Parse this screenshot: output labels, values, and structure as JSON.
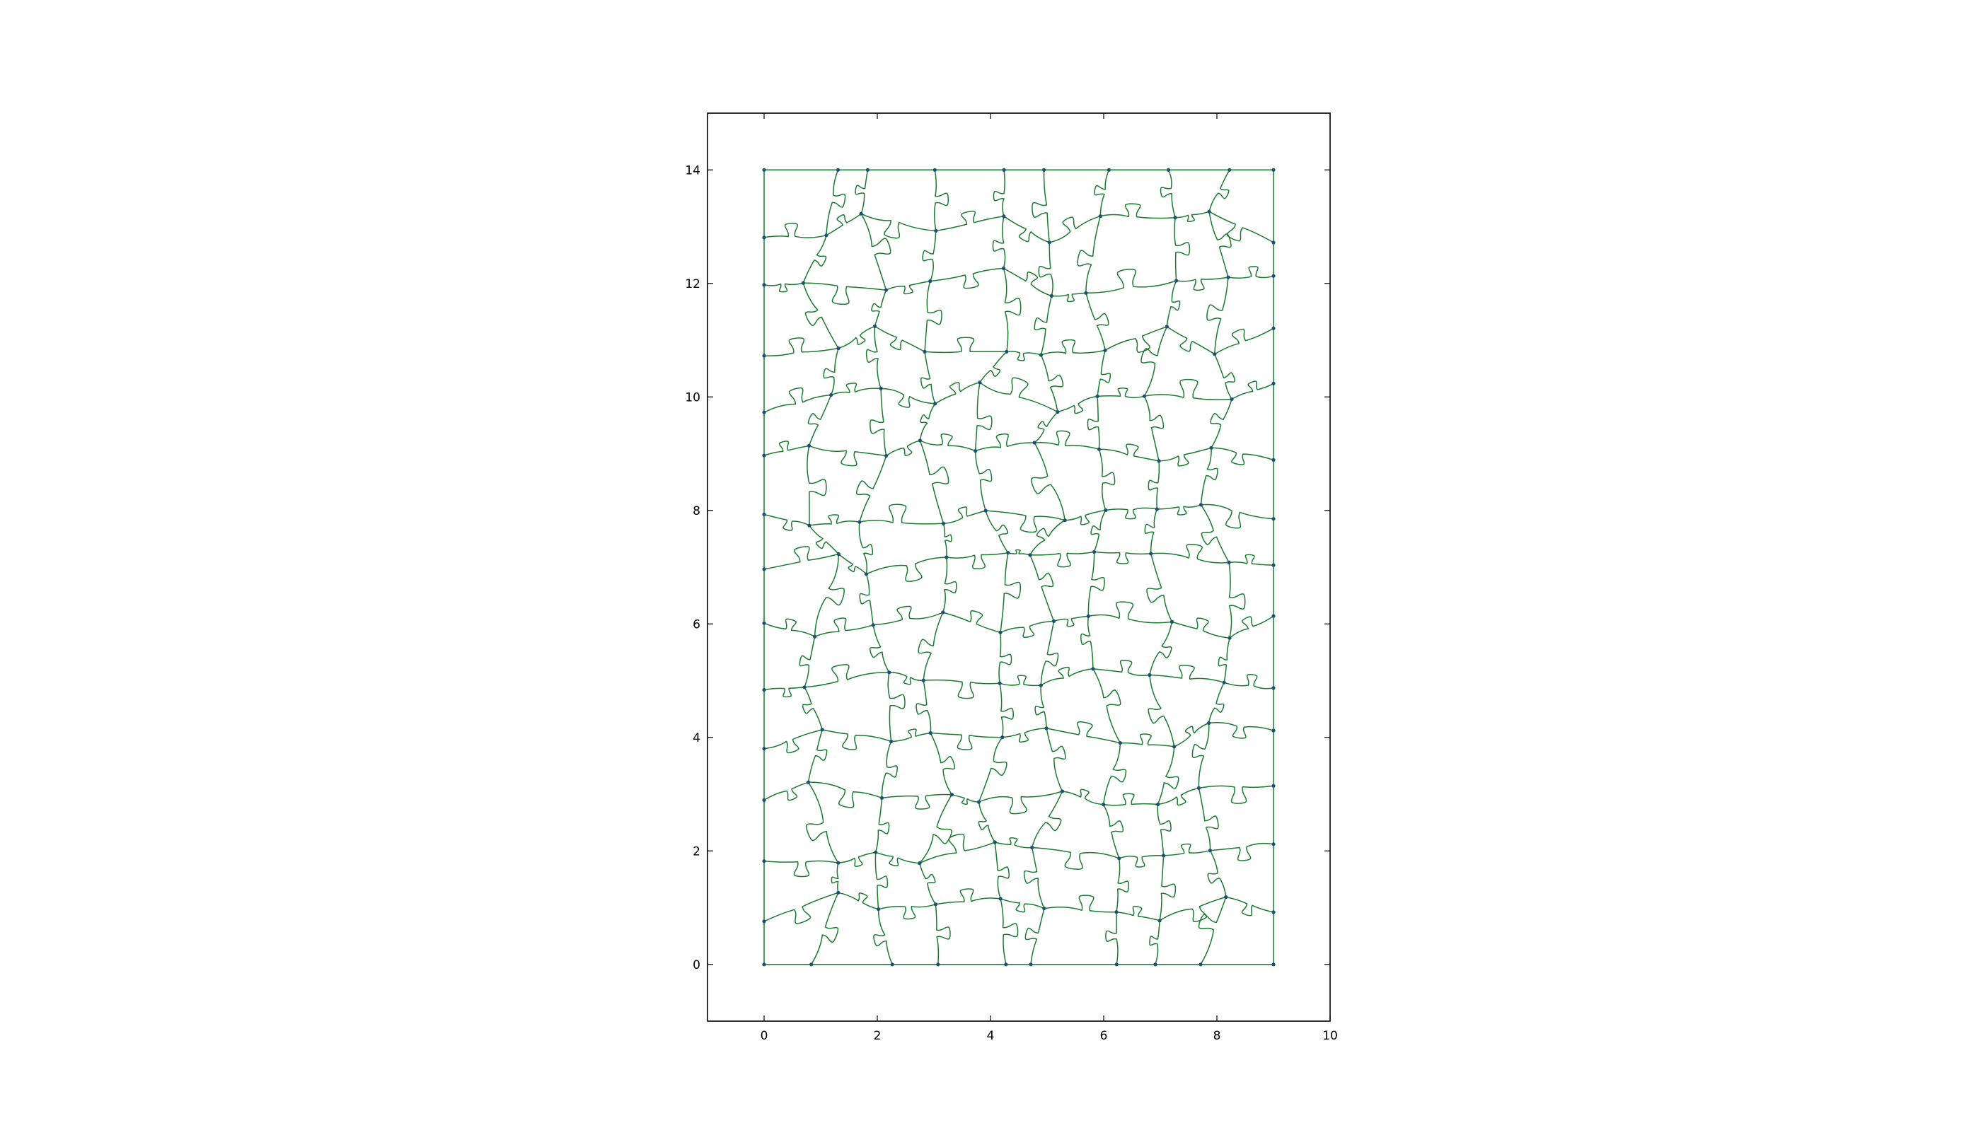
{
  "chart_data": {
    "type": "line",
    "title": "",
    "xlabel": "",
    "ylabel": "",
    "xlim": [
      -1,
      10
    ],
    "ylim": [
      -1,
      15
    ],
    "x_ticks": [
      0,
      2,
      4,
      6,
      8,
      10
    ],
    "y_ticks": [
      0,
      2,
      4,
      6,
      8,
      10,
      12,
      14
    ],
    "x_tick_labels": [
      "0",
      "2",
      "4",
      "6",
      "8",
      "10"
    ],
    "y_tick_labels": [
      "0",
      "2",
      "4",
      "6",
      "8",
      "10",
      "12",
      "14"
    ],
    "grid": false,
    "legend": "none",
    "puzzle": {
      "columns": 9,
      "rows": 14,
      "width": 9,
      "height": 14,
      "seed": 7
    },
    "colors": {
      "line": "#1a7a2e",
      "vertex": "#1f4f73",
      "axes": "#000000",
      "background": "#ffffff"
    }
  }
}
